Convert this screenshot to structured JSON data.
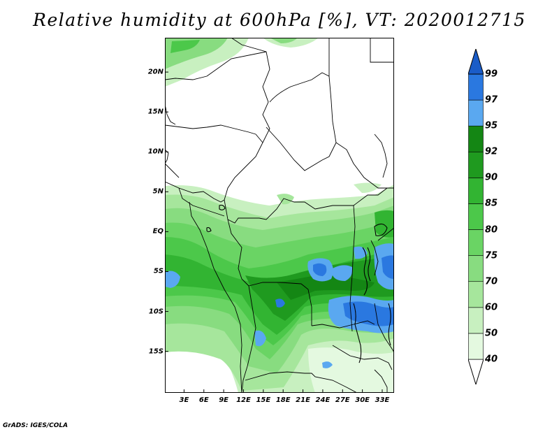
{
  "title": "Relative humidity at 600hPa [%], VT: 2020012715",
  "credit": "GrADS: IGES/COLA",
  "lat_axis": [
    {
      "label": "20N",
      "value": 20
    },
    {
      "label": "15N",
      "value": 15
    },
    {
      "label": "10N",
      "value": 10
    },
    {
      "label": "5N",
      "value": 5
    },
    {
      "label": "EQ",
      "value": 0
    },
    {
      "label": "5S",
      "value": -5
    },
    {
      "label": "10S",
      "value": -10
    },
    {
      "label": "15S",
      "value": -15
    }
  ],
  "lon_axis": [
    {
      "label": "3E",
      "value": 3
    },
    {
      "label": "6E",
      "value": 6
    },
    {
      "label": "9E",
      "value": 9
    },
    {
      "label": "12E",
      "value": 12
    },
    {
      "label": "15E",
      "value": 15
    },
    {
      "label": "18E",
      "value": 18
    },
    {
      "label": "21E",
      "value": 21
    },
    {
      "label": "24E",
      "value": 24
    },
    {
      "label": "27E",
      "value": 27
    },
    {
      "label": "30E",
      "value": 30
    },
    {
      "label": "33E",
      "value": 33
    }
  ],
  "colorbar": {
    "levels": [
      "40",
      "50",
      "60",
      "70",
      "75",
      "80",
      "85",
      "90",
      "92",
      "95",
      "97",
      "99"
    ],
    "colors": [
      "#ffffff",
      "#e4f9e0",
      "#c8f0c0",
      "#a6e69c",
      "#88dc80",
      "#6ad464",
      "#4cc84a",
      "#32b432",
      "#1f9a1f",
      "#148614",
      "#5aa8f0",
      "#2a78e0",
      "#1a5cc8"
    ]
  }
}
